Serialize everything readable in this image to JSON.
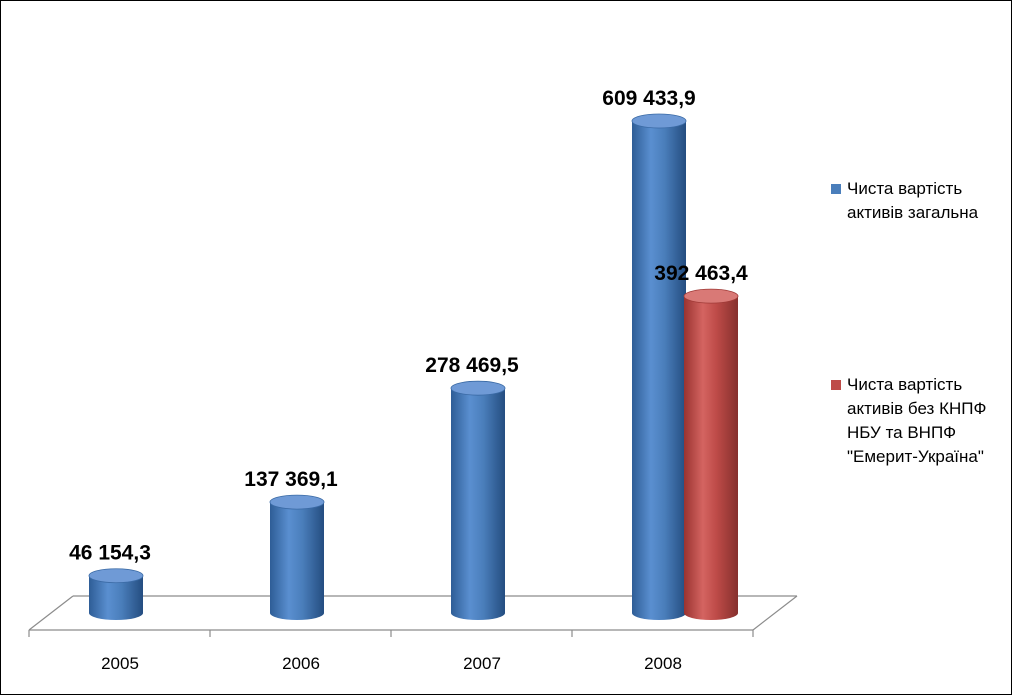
{
  "chart_data": {
    "type": "bar",
    "categories": [
      "2005",
      "2006",
      "2007",
      "2008"
    ],
    "series": [
      {
        "name": "Чиста вартість активів загальна",
        "color": "#4a7ebb",
        "values": [
          46154.3,
          137369.1,
          278469.5,
          609433.9
        ],
        "labels": [
          "46 154,3",
          "137 369,1",
          "278 469,5",
          "609 433,9"
        ]
      },
      {
        "name": "Чиста вартість активів без КНПФ НБУ та ВНПФ \"Емерит-Україна\"",
        "color": "#be4b48",
        "values": [
          null,
          null,
          null,
          392463.4
        ],
        "labels": [
          "",
          "",
          "",
          "392 463,4"
        ]
      }
    ],
    "legend_position": "right",
    "grid": false,
    "bar_shape": "cylinder-3d"
  }
}
